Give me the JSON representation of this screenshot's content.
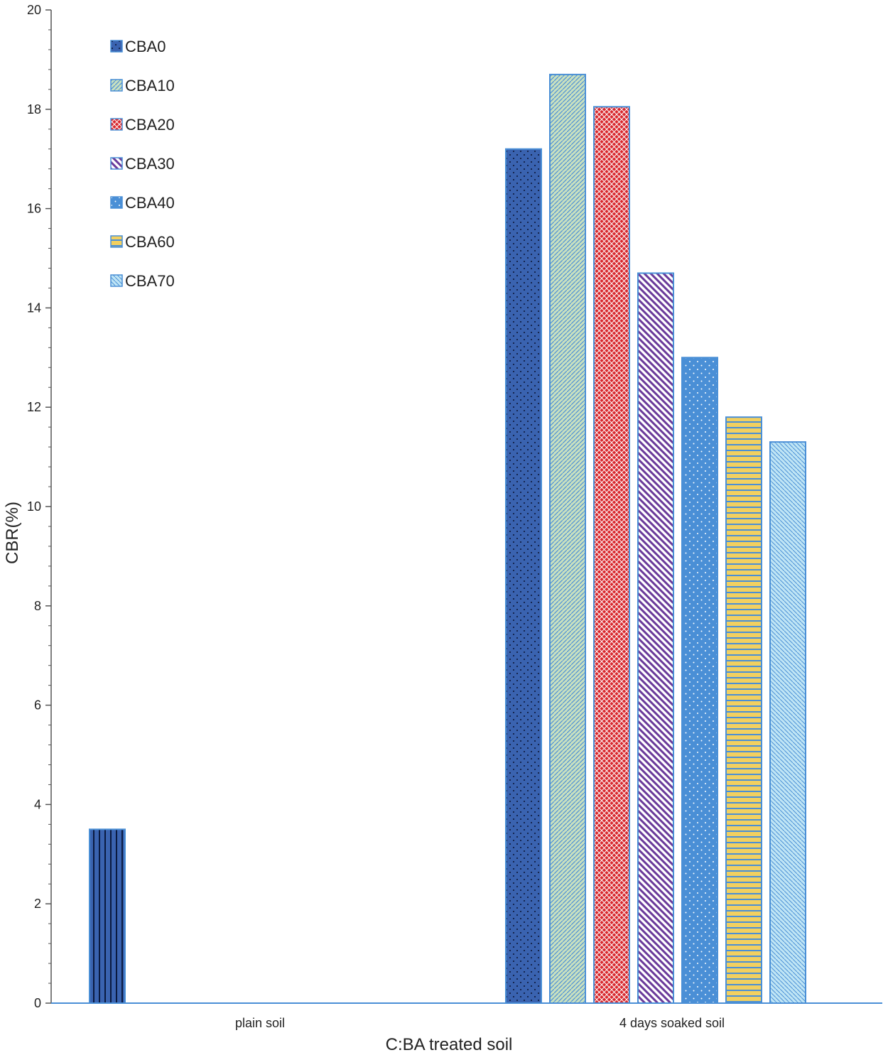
{
  "chart_data": {
    "type": "bar",
    "title": "",
    "xlabel": "C:BA treated soil",
    "ylabel": "CBR(%)",
    "ylim": [
      0,
      20
    ],
    "yticks": [
      0,
      2,
      4,
      6,
      8,
      10,
      12,
      14,
      16,
      18,
      20
    ],
    "categories": [
      "plain soil",
      "4 days soaked soil"
    ],
    "series": [
      {
        "name": "CBA0",
        "values": [
          3.5,
          17.2
        ],
        "color": "#3a63b0",
        "pattern": "dots"
      },
      {
        "name": "CBA10",
        "values": [
          null,
          18.7
        ],
        "color": "#b8d8b0",
        "pattern": "diag-fine"
      },
      {
        "name": "CBA20",
        "values": [
          null,
          18.05
        ],
        "color": "#d8272d",
        "pattern": "crosshatch"
      },
      {
        "name": "CBA30",
        "values": [
          null,
          14.7
        ],
        "color": "#6a3a9a",
        "pattern": "diag-wide"
      },
      {
        "name": "CBA40",
        "values": [
          null,
          13.0
        ],
        "color": "#4a8fd6",
        "pattern": "dots-light"
      },
      {
        "name": "CBA60",
        "values": [
          null,
          11.8
        ],
        "color": "#f2d060",
        "pattern": "horizontal"
      },
      {
        "name": "CBA70",
        "values": [
          null,
          11.3
        ],
        "color": "#aee0f2",
        "pattern": "diag-blue"
      }
    ],
    "legend": "top-left"
  }
}
